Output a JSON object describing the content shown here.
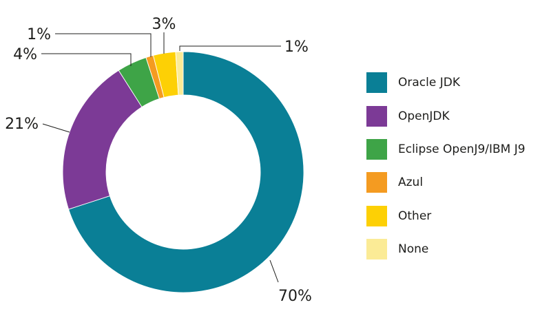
{
  "chart_data": {
    "type": "pie",
    "variant": "donut",
    "title": "",
    "categories": [
      "Oracle JDK",
      "OpenJDK",
      "Eclipse OpenJ9/IBM J9",
      "Azul",
      "Other",
      "None"
    ],
    "values": [
      70,
      21,
      4,
      1,
      3,
      1
    ],
    "value_labels": [
      "70%",
      "21%",
      "4%",
      "1%",
      "3%",
      "1%"
    ],
    "colors": [
      "#0a7f96",
      "#7c3a96",
      "#3ea447",
      "#f49b21",
      "#fdd005",
      "#fbeb96"
    ],
    "legend_placement": "right",
    "start_angle_deg": 0,
    "direction": "clockwise"
  }
}
